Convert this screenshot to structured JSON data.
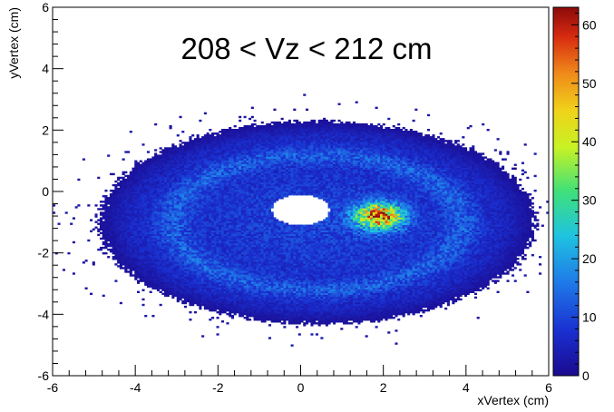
{
  "chart_data": {
    "type": "heatmap",
    "title": "208 < Vz < 212 cm",
    "xlabel": "xVertex (cm)",
    "ylabel": "yVertex (cm)",
    "xlim": [
      -6,
      6
    ],
    "ylim": [
      -6,
      6
    ],
    "x_ticks": [
      "-6",
      "-4",
      "-2",
      "0",
      "2",
      "4",
      "6"
    ],
    "y_ticks": [
      "-6",
      "-4",
      "-2",
      "0",
      "2",
      "4",
      "6"
    ],
    "z_range": [
      0,
      63
    ],
    "colorbar_ticks": [
      "0",
      "10",
      "20",
      "30",
      "40",
      "50",
      "60"
    ],
    "colormap": "rainbow-blue-to-darkred",
    "grid": false,
    "features": {
      "distribution_center": [
        0.4,
        -1.0
      ],
      "core_semi_axes": [
        4.3,
        2.7
      ],
      "hole_center": [
        0.0,
        -0.6
      ],
      "hole_semi_axes": [
        0.7,
        0.5
      ],
      "hotspot_center": [
        1.9,
        -0.8
      ],
      "hotspot_max": 63
    }
  }
}
